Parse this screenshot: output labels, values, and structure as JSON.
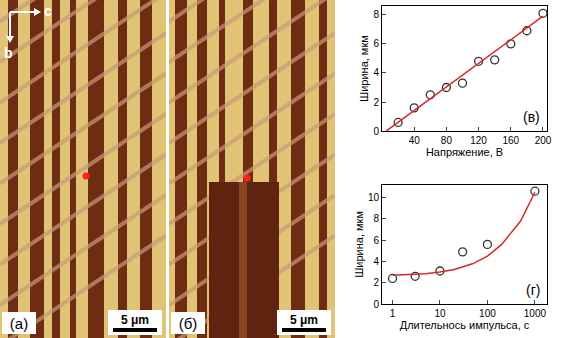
{
  "images": [
    {
      "label": "(а)",
      "axes": {
        "horizontal": "c",
        "vertical": "b"
      },
      "scale_bar": "5 μm"
    },
    {
      "label": "(б)",
      "scale_bar": "5 μm"
    }
  ],
  "chart_data": [
    {
      "type": "scatter",
      "label": "(в)",
      "x_label": "Напряжение, В",
      "y_label": "Ширина, мкм",
      "xlim": [
        0,
        205
      ],
      "xticks": [
        40,
        80,
        120,
        160,
        200
      ],
      "ylim": [
        0,
        8.6
      ],
      "yticks": [
        0,
        2,
        4,
        6,
        8
      ],
      "series": [
        {
          "type": "scatter",
          "marker": "circle-open",
          "color": "#333333",
          "x": [
            20,
            40,
            60,
            80,
            100,
            120,
            140,
            160,
            180,
            200
          ],
          "values": [
            0.6,
            1.6,
            2.5,
            3.0,
            3.3,
            4.8,
            4.9,
            6.0,
            6.9,
            8.1
          ]
        },
        {
          "type": "line",
          "color": "#d62728",
          "line_style": "solid",
          "x": [
            5,
            200
          ],
          "values": [
            0,
            7.9
          ]
        }
      ]
    },
    {
      "type": "scatter",
      "label": "(г)",
      "x_label": "Длительнось импульса, с",
      "y_label": "Ширина, мкм",
      "log": "x",
      "xlim": [
        0.6,
        1800
      ],
      "xticks": [
        1,
        10,
        100,
        1000
      ],
      "ylim": [
        0,
        11.2
      ],
      "yticks": [
        0,
        2,
        4,
        6,
        8,
        10
      ],
      "series": [
        {
          "type": "scatter",
          "marker": "circle-open",
          "color": "#333333",
          "x": [
            1,
            3,
            10,
            30,
            100,
            1000
          ],
          "values": [
            2.4,
            2.6,
            3.1,
            4.9,
            5.6,
            10.6
          ]
        },
        {
          "type": "line",
          "color": "#d62728",
          "line_style": "solid",
          "x": [
            1,
            2,
            5,
            10,
            20,
            50,
            100,
            200,
            500,
            1000
          ],
          "values": [
            2.7,
            2.75,
            2.85,
            3.0,
            3.25,
            3.8,
            4.5,
            5.6,
            7.8,
            10.5
          ]
        }
      ]
    }
  ]
}
